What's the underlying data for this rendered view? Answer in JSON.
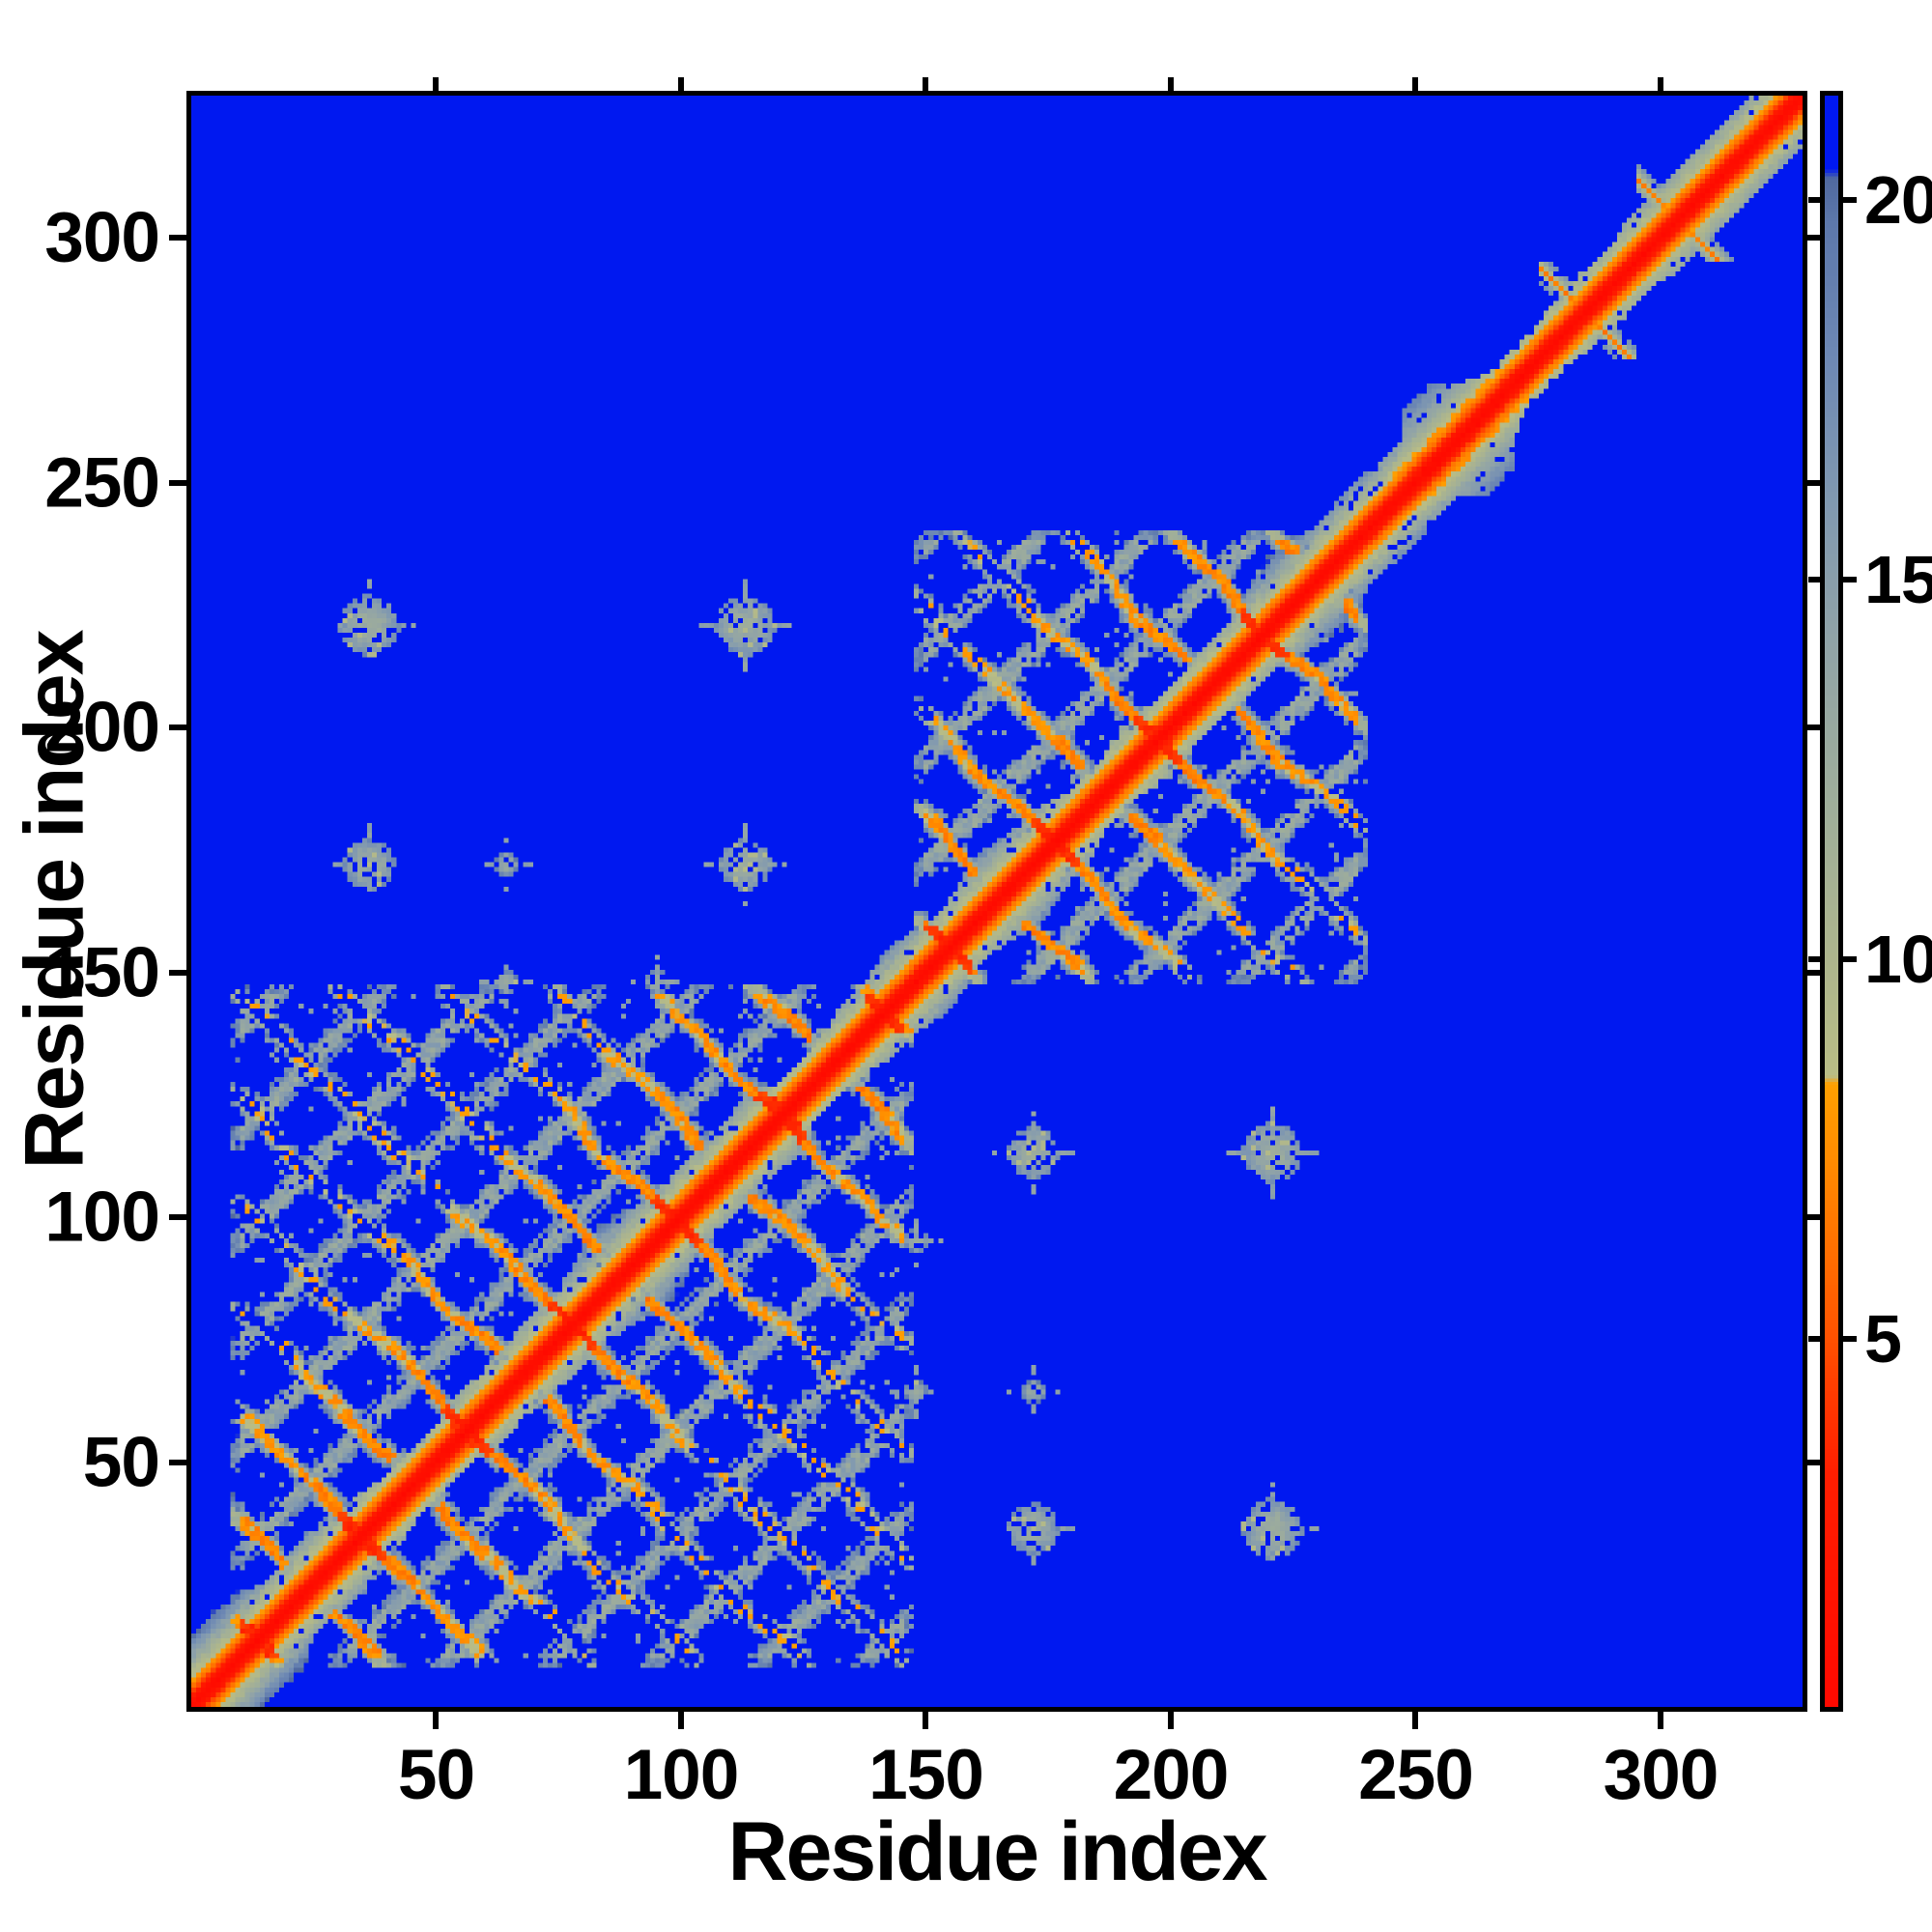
{
  "page": {
    "background": "#ffffff"
  },
  "chart_data": {
    "type": "heatmap",
    "title": "",
    "xlabel": "Residue index",
    "ylabel": "Residue index",
    "n_residues": 329,
    "axis_range": [
      0,
      329
    ],
    "x_ticks": [
      50,
      100,
      150,
      200,
      250,
      300
    ],
    "y_ticks": [
      50,
      100,
      150,
      200,
      250,
      300
    ],
    "grid": false,
    "legend_position": "none",
    "colorbar": {
      "position": "right",
      "ticks": [
        5,
        10,
        15,
        20
      ],
      "vmin": 0.15,
      "vmax": 21.37,
      "far_color": "#0018f0",
      "colormap": [
        [
          0.0,
          "#ff0800"
        ],
        [
          3.2,
          "#ff1e00"
        ],
        [
          4.3,
          "#ff3c00"
        ],
        [
          5.3,
          "#ff5a00"
        ],
        [
          6.3,
          "#ff7300"
        ],
        [
          7.3,
          "#ff8a00"
        ],
        [
          8.35,
          "#ffa000"
        ],
        [
          8.45,
          "#b9bd85"
        ],
        [
          10.0,
          "#adb58d"
        ],
        [
          12.0,
          "#9fae9a"
        ],
        [
          14.0,
          "#92a4a6"
        ],
        [
          16.0,
          "#8199b0"
        ],
        [
          18.0,
          "#6d88b4"
        ],
        [
          19.7,
          "#5d78ab"
        ],
        [
          20.3,
          "#50699f"
        ],
        [
          20.42,
          "#0018f0"
        ],
        [
          21.37,
          "#0018f0"
        ]
      ]
    },
    "matrix_model": {
      "seed": 1337,
      "far_value": 21.37,
      "backbone_profile": [
        0.4,
        1.1,
        2.6,
        4.6,
        6.4,
        7.8,
        9.2
      ],
      "domains": [
        {
          "start": 8,
          "end": 147,
          "period": 21.5,
          "phase": 5
        },
        {
          "start": 148,
          "end": 240,
          "period": 22.0,
          "phase": 6
        }
      ],
      "helix_hairpin": {
        "start": 244,
        "end": 274
      },
      "cterm_hairpins": [
        {
          "center": 285,
          "len": 9
        },
        {
          "center": 304,
          "len": 8
        }
      ],
      "parallel_streak": {
        "start": 288,
        "end": 300,
        "offset": 8
      },
      "interface_contacts": [
        {
          "i": 36,
          "j": 172,
          "r": 5
        },
        {
          "i": 113,
          "j": 172,
          "r": 5
        },
        {
          "i": 36,
          "j": 221,
          "r": 6
        },
        {
          "i": 113,
          "j": 221,
          "r": 6
        },
        {
          "i": 64,
          "j": 172,
          "r": 2
        },
        {
          "i": 95,
          "j": 148,
          "r": 2
        },
        {
          "i": 64,
          "j": 148,
          "r": 2
        }
      ],
      "description": "Symmetric residue-residue distance map. Red = closest (<4), orange = 4-8.4, gray-green/gray-blue = 8.4-20.4, blue = far (>20.4). Red main diagonal; two beta-domain blocks (res ~8-147 and ~148-240) with antidiagonal orange hairpin stripes and gray diamond contact lattice; C-terminal helix hairpin lens at res ~246-274; small hairpin crossings near res 285 and 304; isolated interdomain contact blobs at pairs (36,172), (113,172), (36,221), (113,221)."
    }
  }
}
